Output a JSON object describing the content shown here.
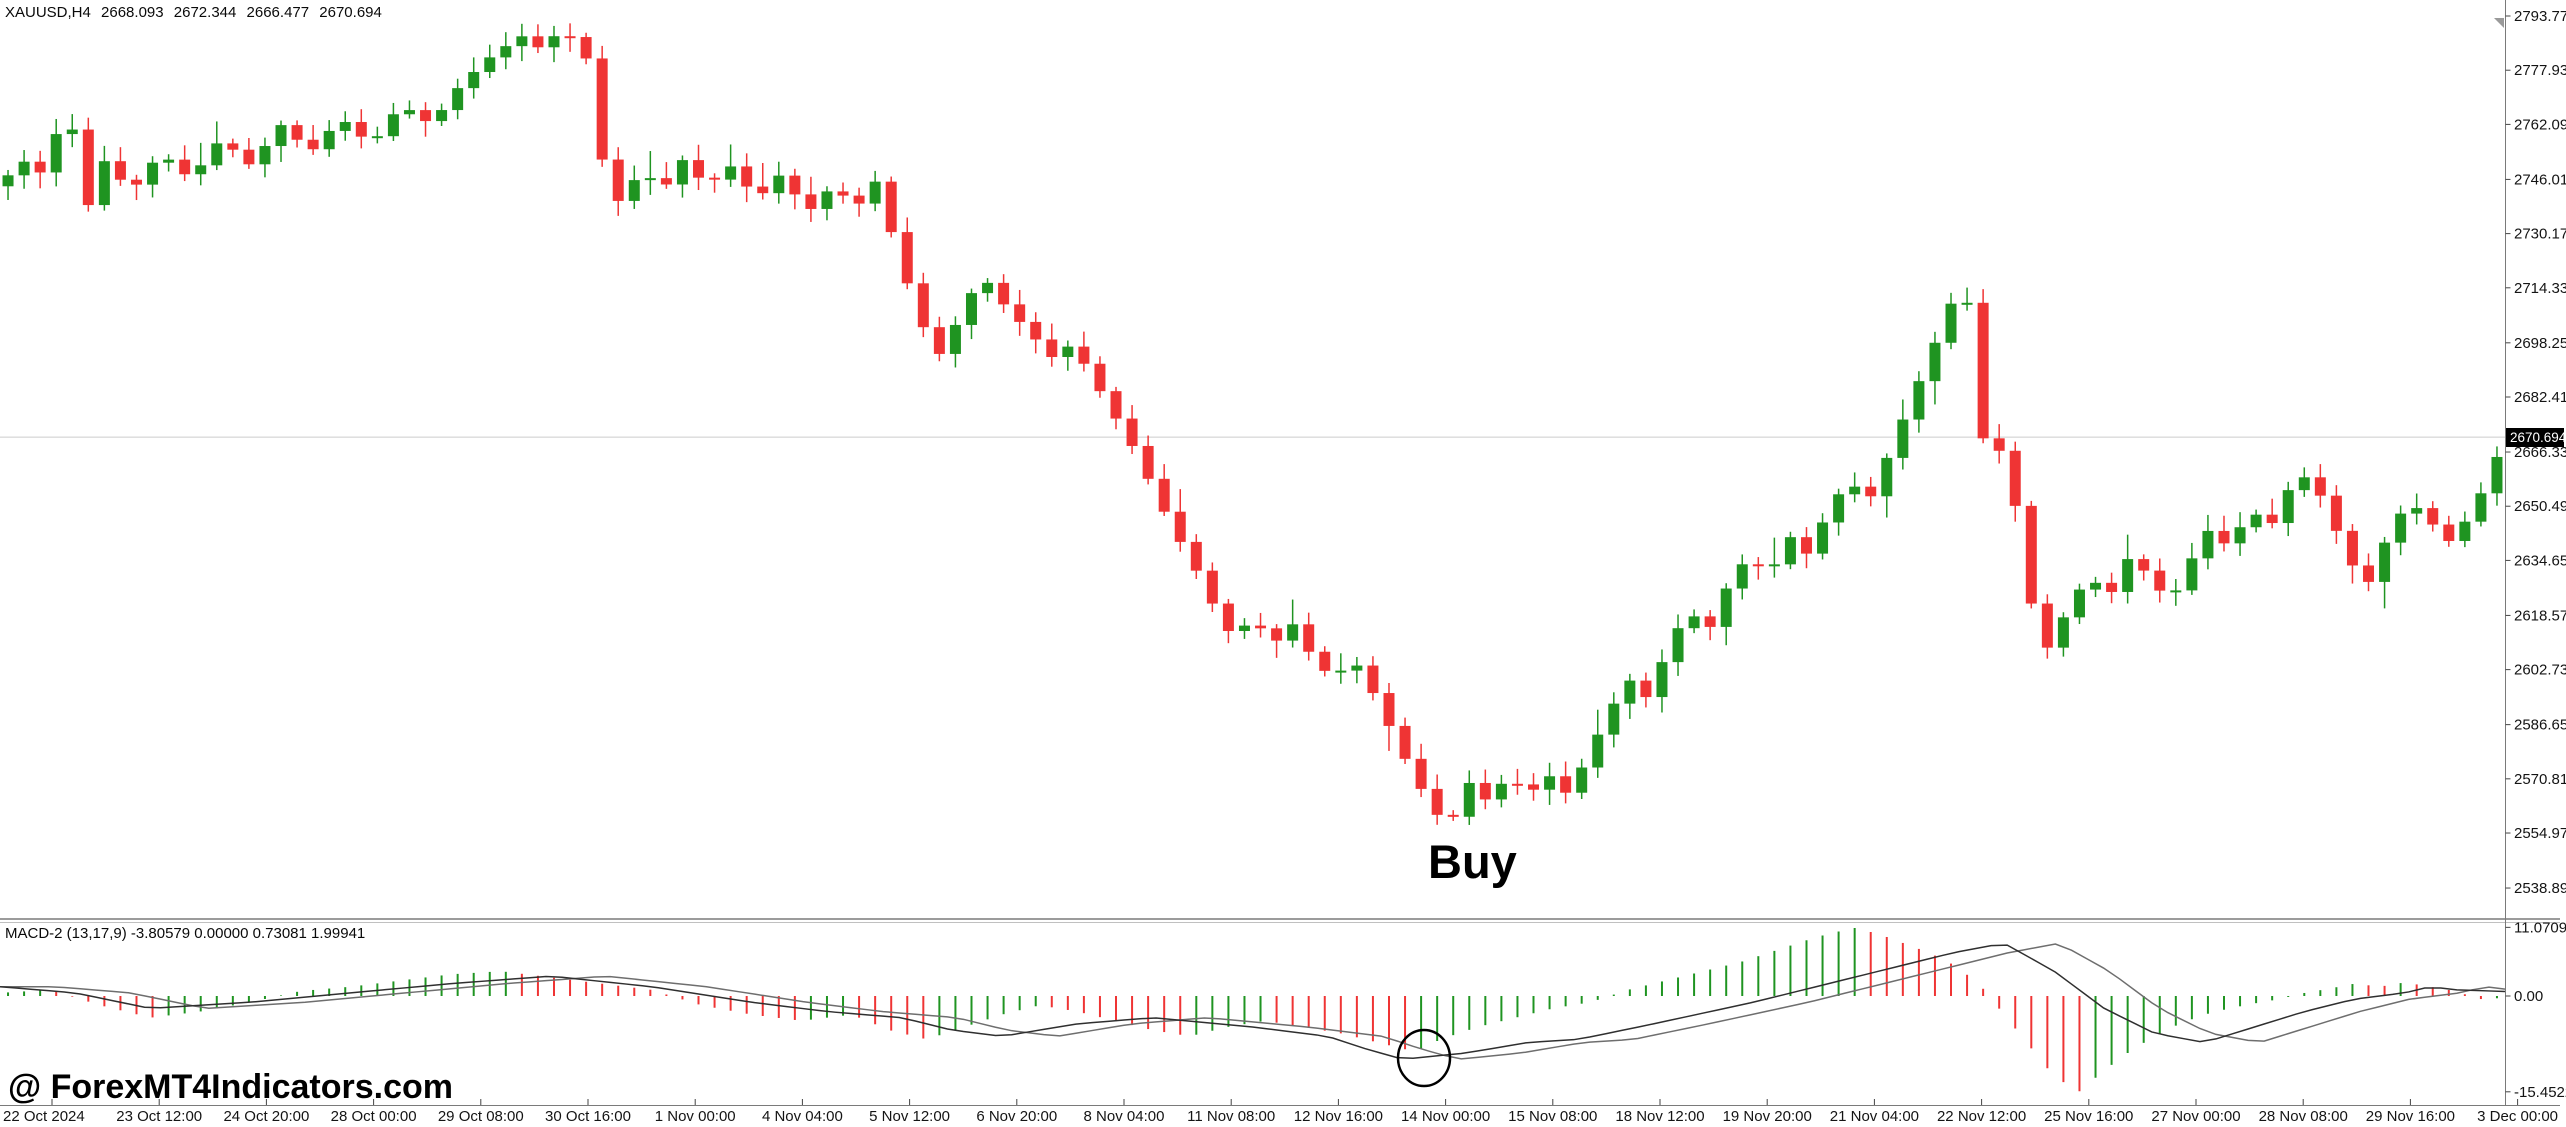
{
  "window": {
    "app": "MetaTrader 4 chart",
    "title": "XAUUSD,H4"
  },
  "header": {
    "symbol_period": "XAUUSD,H4",
    "open": "2668.093",
    "high": "2672.344",
    "low": "2666.477",
    "close": "2670.694"
  },
  "price_axis": {
    "labels": [
      "2793.770",
      "2777.930",
      "2762.090",
      "2746.010",
      "2730.170",
      "2714.330",
      "2698.250",
      "2682.410",
      "2666.330",
      "2650.490",
      "2634.650",
      "2618.570",
      "2602.730",
      "2586.650",
      "2570.810",
      "2554.970",
      "2538.890"
    ],
    "current_price": "2670.694"
  },
  "time_axis": {
    "labels": [
      "22 Oct 2024",
      "23 Oct 12:00",
      "24 Oct 20:00",
      "28 Oct 00:00",
      "29 Oct 08:00",
      "30 Oct 16:00",
      "1 Nov 00:00",
      "4 Nov 04:00",
      "5 Nov 12:00",
      "6 Nov 20:00",
      "8 Nov 04:00",
      "11 Nov 08:00",
      "12 Nov 16:00",
      "14 Nov 00:00",
      "15 Nov 08:00",
      "18 Nov 12:00",
      "19 Nov 20:00",
      "21 Nov 04:00",
      "22 Nov 12:00",
      "25 Nov 16:00",
      "27 Nov 00:00",
      "28 Nov 08:00",
      "29 Nov 16:00",
      "3 Dec 00:00"
    ]
  },
  "macd_panel": {
    "label": "MACD-2 (13,17,9) -3.80579 0.00000 0.73081 1.99941",
    "scale_max": "11.07093",
    "scale_zero": "0.00",
    "scale_min": "-15.45221"
  },
  "annotations": {
    "buy_label": "Buy",
    "watermark": "@ ForexMT4Indicators.com",
    "circle_note": "crossover-circle-on-macd"
  },
  "colors": {
    "bull": "#1f9421",
    "bear": "#ef3434",
    "hist_up": "#1f9421",
    "hist_down": "#ef3434",
    "macd_line": "#2f2f2f",
    "signal_line": "#6e6e6e",
    "border": "#7a7a7a",
    "price_line": "#cccccc",
    "badge_bg": "#000000",
    "badge_text": "#ffffff",
    "axis_text": "#141414"
  },
  "chart_data": {
    "type": "candlestick",
    "symbol": "XAUUSD",
    "timeframe": "H4",
    "visible_price_range": [
      2538.89,
      2793.77
    ],
    "candle_count": 156,
    "last_close": 2670.694,
    "price_path": [
      [
        0.0,
        2744
      ],
      [
        0.008,
        2752
      ],
      [
        0.016,
        2748
      ],
      [
        0.024,
        2762
      ],
      [
        0.028,
        2766
      ],
      [
        0.033,
        2734
      ],
      [
        0.042,
        2752
      ],
      [
        0.052,
        2742
      ],
      [
        0.064,
        2754
      ],
      [
        0.076,
        2746
      ],
      [
        0.088,
        2758
      ],
      [
        0.1,
        2750
      ],
      [
        0.112,
        2762
      ],
      [
        0.124,
        2754
      ],
      [
        0.136,
        2764
      ],
      [
        0.148,
        2756
      ],
      [
        0.16,
        2768
      ],
      [
        0.172,
        2762
      ],
      [
        0.184,
        2774
      ],
      [
        0.196,
        2782
      ],
      [
        0.208,
        2788
      ],
      [
        0.216,
        2784
      ],
      [
        0.224,
        2790
      ],
      [
        0.23,
        2786
      ],
      [
        0.236,
        2779
      ],
      [
        0.241,
        2748
      ],
      [
        0.248,
        2738
      ],
      [
        0.256,
        2750
      ],
      [
        0.264,
        2742
      ],
      [
        0.272,
        2752
      ],
      [
        0.282,
        2744
      ],
      [
        0.292,
        2750
      ],
      [
        0.302,
        2740
      ],
      [
        0.312,
        2748
      ],
      [
        0.322,
        2736
      ],
      [
        0.332,
        2744
      ],
      [
        0.342,
        2738
      ],
      [
        0.35,
        2746
      ],
      [
        0.356,
        2730
      ],
      [
        0.362,
        2716
      ],
      [
        0.37,
        2700
      ],
      [
        0.376,
        2694
      ],
      [
        0.384,
        2708
      ],
      [
        0.392,
        2718
      ],
      [
        0.4,
        2710
      ],
      [
        0.41,
        2702
      ],
      [
        0.42,
        2694
      ],
      [
        0.428,
        2698
      ],
      [
        0.436,
        2688
      ],
      [
        0.444,
        2678
      ],
      [
        0.452,
        2668
      ],
      [
        0.46,
        2656
      ],
      [
        0.468,
        2644
      ],
      [
        0.476,
        2634
      ],
      [
        0.484,
        2622
      ],
      [
        0.492,
        2612
      ],
      [
        0.5,
        2618
      ],
      [
        0.508,
        2610
      ],
      [
        0.516,
        2616
      ],
      [
        0.524,
        2606
      ],
      [
        0.532,
        2600
      ],
      [
        0.54,
        2606
      ],
      [
        0.548,
        2596
      ],
      [
        0.556,
        2584
      ],
      [
        0.564,
        2572
      ],
      [
        0.572,
        2562
      ],
      [
        0.578,
        2556
      ],
      [
        0.586,
        2570
      ],
      [
        0.594,
        2564
      ],
      [
        0.602,
        2572
      ],
      [
        0.61,
        2566
      ],
      [
        0.618,
        2572
      ],
      [
        0.626,
        2566
      ],
      [
        0.634,
        2578
      ],
      [
        0.642,
        2590
      ],
      [
        0.65,
        2600
      ],
      [
        0.658,
        2594
      ],
      [
        0.666,
        2610
      ],
      [
        0.674,
        2620
      ],
      [
        0.682,
        2614
      ],
      [
        0.69,
        2628
      ],
      [
        0.698,
        2636
      ],
      [
        0.706,
        2630
      ],
      [
        0.714,
        2642
      ],
      [
        0.722,
        2636
      ],
      [
        0.73,
        2650
      ],
      [
        0.738,
        2658
      ],
      [
        0.746,
        2652
      ],
      [
        0.754,
        2666
      ],
      [
        0.762,
        2680
      ],
      [
        0.77,
        2694
      ],
      [
        0.778,
        2708
      ],
      [
        0.784,
        2720
      ],
      [
        0.79,
        2672
      ],
      [
        0.796,
        2666
      ],
      [
        0.802,
        2668
      ],
      [
        0.806,
        2640
      ],
      [
        0.812,
        2618
      ],
      [
        0.818,
        2608
      ],
      [
        0.826,
        2622
      ],
      [
        0.834,
        2630
      ],
      [
        0.842,
        2624
      ],
      [
        0.85,
        2636
      ],
      [
        0.858,
        2630
      ],
      [
        0.866,
        2622
      ],
      [
        0.874,
        2634
      ],
      [
        0.882,
        2644
      ],
      [
        0.89,
        2638
      ],
      [
        0.898,
        2650
      ],
      [
        0.906,
        2644
      ],
      [
        0.914,
        2656
      ],
      [
        0.922,
        2660
      ],
      [
        0.93,
        2648
      ],
      [
        0.938,
        2634
      ],
      [
        0.946,
        2628
      ],
      [
        0.954,
        2644
      ],
      [
        0.962,
        2652
      ],
      [
        0.97,
        2646
      ],
      [
        0.978,
        2640
      ],
      [
        0.986,
        2648
      ],
      [
        0.993,
        2658
      ],
      [
        1.0,
        2670.7
      ]
    ],
    "macd": {
      "range": [
        -15.45221,
        11.07093
      ],
      "line": [
        [
          0.0,
          1.5
        ],
        [
          0.03,
          0.5
        ],
        [
          0.06,
          -2.0
        ],
        [
          0.1,
          -1.0
        ],
        [
          0.14,
          0.5
        ],
        [
          0.18,
          2.0
        ],
        [
          0.22,
          3.2
        ],
        [
          0.26,
          1.5
        ],
        [
          0.3,
          -1.0
        ],
        [
          0.33,
          -2.5
        ],
        [
          0.36,
          -3.5
        ],
        [
          0.38,
          -5.5
        ],
        [
          0.4,
          -6.5
        ],
        [
          0.43,
          -4.5
        ],
        [
          0.46,
          -3.5
        ],
        [
          0.5,
          -5.0
        ],
        [
          0.53,
          -6.5
        ],
        [
          0.545,
          -8.5
        ],
        [
          0.56,
          -10.2
        ],
        [
          0.585,
          -9.2
        ],
        [
          0.61,
          -7.5
        ],
        [
          0.63,
          -7.0
        ],
        [
          0.66,
          -4.5
        ],
        [
          0.7,
          -1.0
        ],
        [
          0.74,
          3.0
        ],
        [
          0.78,
          7.0
        ],
        [
          0.8,
          8.5
        ],
        [
          0.82,
          4.0
        ],
        [
          0.84,
          -2.0
        ],
        [
          0.86,
          -6.0
        ],
        [
          0.88,
          -7.5
        ],
        [
          0.9,
          -5.0
        ],
        [
          0.92,
          -2.5
        ],
        [
          0.94,
          -0.5
        ],
        [
          0.96,
          0.5
        ],
        [
          0.97,
          1.5
        ],
        [
          0.98,
          1.0
        ],
        [
          1.0,
          0.73
        ]
      ],
      "histogram": [
        [
          0.0,
          0.5
        ],
        [
          0.02,
          1.0
        ],
        [
          0.04,
          -1.5
        ],
        [
          0.06,
          -3.5
        ],
        [
          0.08,
          -2.5
        ],
        [
          0.1,
          -1.0
        ],
        [
          0.12,
          0.8
        ],
        [
          0.14,
          1.5
        ],
        [
          0.16,
          2.5
        ],
        [
          0.18,
          3.5
        ],
        [
          0.2,
          4.0
        ],
        [
          0.22,
          3.0
        ],
        [
          0.24,
          2.0
        ],
        [
          0.26,
          1.0
        ],
        [
          0.28,
          -1.5
        ],
        [
          0.3,
          -3.0
        ],
        [
          0.32,
          -4.0
        ],
        [
          0.34,
          -3.0
        ],
        [
          0.355,
          -5.5
        ],
        [
          0.37,
          -7.0
        ],
        [
          0.385,
          -5.0
        ],
        [
          0.4,
          -3.0
        ],
        [
          0.415,
          -1.5
        ],
        [
          0.43,
          -2.5
        ],
        [
          0.445,
          -4.0
        ],
        [
          0.46,
          -5.5
        ],
        [
          0.475,
          -6.5
        ],
        [
          0.49,
          -5.0
        ],
        [
          0.505,
          -4.0
        ],
        [
          0.52,
          -5.0
        ],
        [
          0.535,
          -6.0
        ],
        [
          0.55,
          -7.5
        ],
        [
          0.565,
          -9.0
        ],
        [
          0.575,
          -7.0
        ],
        [
          0.59,
          -5.0
        ],
        [
          0.605,
          -3.5
        ],
        [
          0.62,
          -2.0
        ],
        [
          0.635,
          -1.0
        ],
        [
          0.65,
          1.0
        ],
        [
          0.665,
          2.5
        ],
        [
          0.68,
          4.0
        ],
        [
          0.695,
          5.5
        ],
        [
          0.71,
          7.5
        ],
        [
          0.725,
          9.5
        ],
        [
          0.74,
          11.0
        ],
        [
          0.75,
          10.0
        ],
        [
          0.76,
          8.5
        ],
        [
          0.77,
          7.0
        ],
        [
          0.78,
          5.0
        ],
        [
          0.79,
          2.0
        ],
        [
          0.8,
          -3.0
        ],
        [
          0.81,
          -8.0
        ],
        [
          0.82,
          -13.0
        ],
        [
          0.83,
          -15.4
        ],
        [
          0.84,
          -12.0
        ],
        [
          0.85,
          -9.0
        ],
        [
          0.86,
          -6.5
        ],
        [
          0.87,
          -4.5
        ],
        [
          0.88,
          -3.0
        ],
        [
          0.89,
          -2.0
        ],
        [
          0.9,
          -1.2
        ],
        [
          0.91,
          -0.5
        ],
        [
          0.92,
          0.5
        ],
        [
          0.93,
          1.2
        ],
        [
          0.94,
          2.0
        ],
        [
          0.95,
          1.5
        ],
        [
          0.96,
          2.2
        ],
        [
          0.97,
          1.5
        ],
        [
          0.98,
          0.8
        ],
        [
          0.99,
          -0.5
        ],
        [
          1.0,
          -0.3
        ]
      ]
    }
  }
}
